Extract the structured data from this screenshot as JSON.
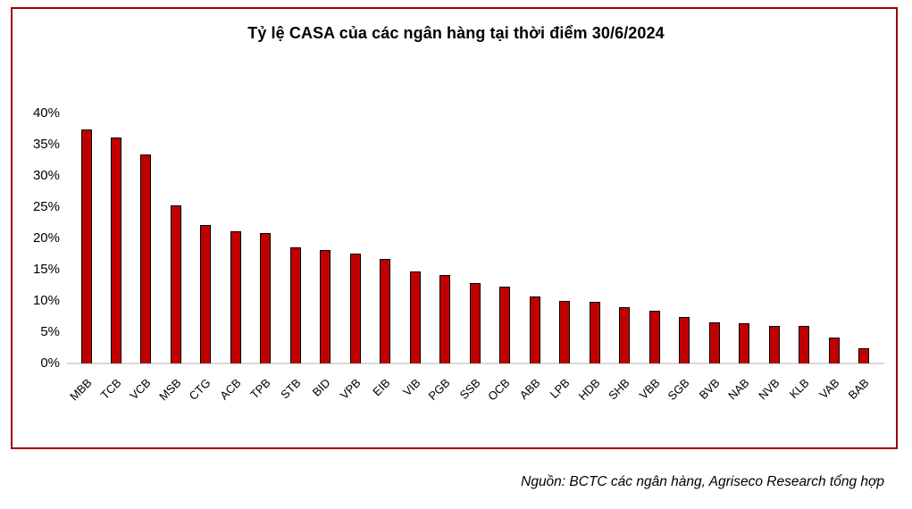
{
  "chart_data": {
    "type": "bar",
    "title": "Tỷ lệ CASA của các ngân hàng tại thời điểm 30/6/2024",
    "categories": [
      "MBB",
      "TCB",
      "VCB",
      "MSB",
      "CTG",
      "ACB",
      "TPB",
      "STB",
      "BID",
      "VPB",
      "EIB",
      "VIB",
      "PGB",
      "SSB",
      "OCB",
      "ABB",
      "LPB",
      "HDB",
      "SHB",
      "VBB",
      "SGB",
      "BVB",
      "NAB",
      "NVB",
      "KLB",
      "VAB",
      "BAB"
    ],
    "values": [
      37.5,
      36.2,
      33.5,
      25.3,
      22.1,
      21.1,
      20.8,
      18.6,
      18.2,
      17.6,
      16.7,
      14.7,
      14.1,
      12.8,
      12.3,
      10.7,
      10.0,
      9.8,
      9.0,
      8.4,
      7.4,
      6.6,
      6.4,
      6.0,
      6.0,
      4.1,
      2.4
    ],
    "unit": "%",
    "xlabel": "",
    "ylabel": "",
    "ylim": [
      0,
      40
    ],
    "yticks": [
      0,
      5,
      10,
      15,
      20,
      25,
      30,
      35,
      40
    ],
    "ytick_suffix": "%",
    "grid": false,
    "legend": false,
    "bar_color": "#C00000",
    "bar_border_color": "#000000",
    "frame_border_color": "#A00000",
    "axis_line_color": "#D9D9D9"
  },
  "source_note": "Nguồn: BCTC các ngân hàng, Agriseco Research tổng hợp"
}
